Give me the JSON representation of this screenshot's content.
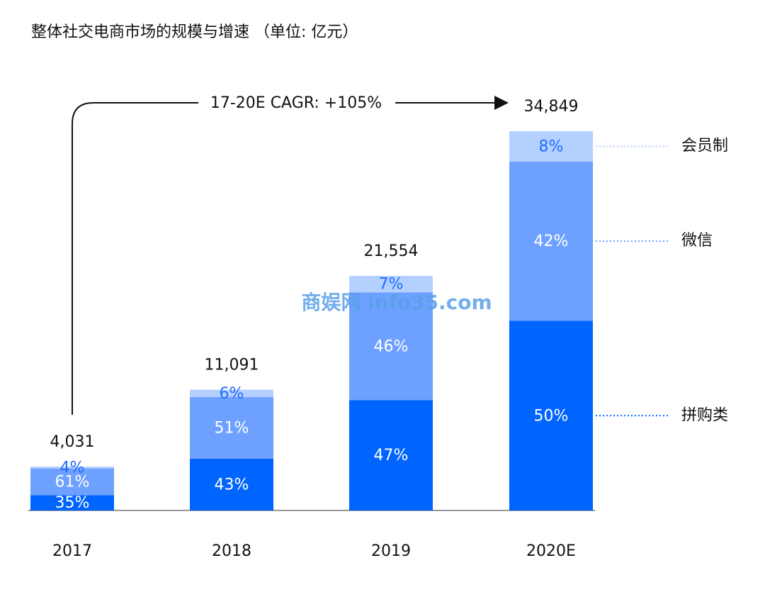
{
  "chart_data": {
    "type": "stacked-bar-percent",
    "title": "整体社交电商市场的规模与增速 （单位: 亿元）",
    "annotation": "17-20E CAGR: +105%",
    "watermark": "商娱网 info35.com",
    "categories": [
      "2017",
      "2018",
      "2019",
      "2020E"
    ],
    "totals": [
      4031,
      11091,
      21554,
      34849
    ],
    "total_labels": [
      "4,031",
      "11,091",
      "21,554",
      "34,849"
    ],
    "series": [
      {
        "name": "拼购类",
        "color": "#0064ff",
        "label_color": "#ffffff",
        "values": [
          35,
          43,
          47,
          50
        ],
        "value_labels": [
          "35%",
          "43%",
          "47%",
          "50%"
        ]
      },
      {
        "name": "微信",
        "color": "#6ea1ff",
        "label_color": "#ffffff",
        "values": [
          61,
          51,
          46,
          42
        ],
        "value_labels": [
          "61%",
          "51%",
          "46%",
          "42%"
        ]
      },
      {
        "name": "会员制",
        "color": "#b4d0ff",
        "label_color": "#1f6bff",
        "values": [
          4,
          6,
          7,
          8
        ],
        "value_labels": [
          "4%",
          "6%",
          "7%",
          "8%"
        ]
      }
    ]
  }
}
